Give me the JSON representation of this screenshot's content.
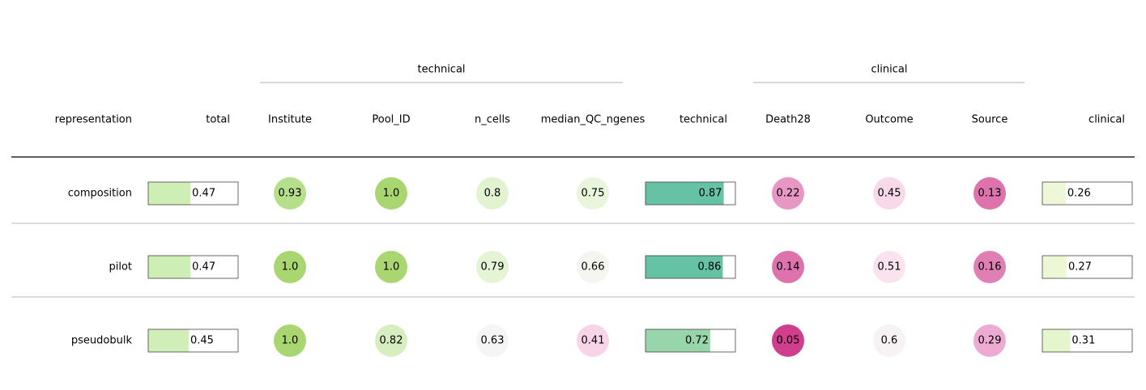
{
  "table": {
    "label_header": "representation",
    "groups": [
      "technical",
      "clinical"
    ],
    "columns": [
      {
        "name": "total",
        "kind": "bar"
      },
      {
        "name": "Institute",
        "kind": "circle"
      },
      {
        "name": "Pool_ID",
        "kind": "circle"
      },
      {
        "name": "n_cells",
        "kind": "circle"
      },
      {
        "name": "median_QC_ngenes",
        "kind": "circle"
      },
      {
        "name": "technical",
        "kind": "bar"
      },
      {
        "name": "Death28",
        "kind": "circle"
      },
      {
        "name": "Outcome",
        "kind": "circle"
      },
      {
        "name": "Source",
        "kind": "circle"
      },
      {
        "name": "clinical",
        "kind": "bar"
      }
    ],
    "rows": [
      {
        "name": "composition",
        "values": [
          0.47,
          0.93,
          {
            "value": 1,
            "label": "1.0"
          },
          0.8,
          0.75,
          0.87,
          0.22,
          0.45,
          0.13,
          0.26
        ],
        "colors": [
          "#cdeeb4",
          "#b5df8a",
          "#a9d670",
          "#e2f3d2",
          "#eaf6dc",
          "#66c2a5",
          "#e897c4",
          "#f8d9ea",
          "#de72ad",
          "#eef8d9"
        ]
      },
      {
        "name": "pilot",
        "values": [
          0.47,
          {
            "value": 1,
            "label": "1.0"
          },
          {
            "value": 1,
            "label": "1.0"
          },
          0.79,
          0.66,
          0.86,
          0.14,
          0.51,
          0.16,
          0.27
        ],
        "colors": [
          "#cdeeb4",
          "#a9d670",
          "#a9d670",
          "#e4f4d4",
          "#f4f6ef",
          "#66c2a5",
          "#dd72ad",
          "#fae3ee",
          "#e07fb4",
          "#edf7d5"
        ]
      },
      {
        "name": "pseudobulk",
        "values": [
          0.45,
          {
            "value": 1,
            "label": "1.0"
          },
          0.82,
          0.63,
          0.41,
          0.72,
          0.05,
          0.6,
          0.29,
          0.31
        ],
        "colors": [
          "#d0efb8",
          "#a9d670",
          "#d7efc0",
          "#f5f5f5",
          "#f8d4e8",
          "#99d5aa",
          "#cf3f8e",
          "#f7f3f5",
          "#edaad2",
          "#e5f5cd"
        ]
      }
    ]
  }
}
